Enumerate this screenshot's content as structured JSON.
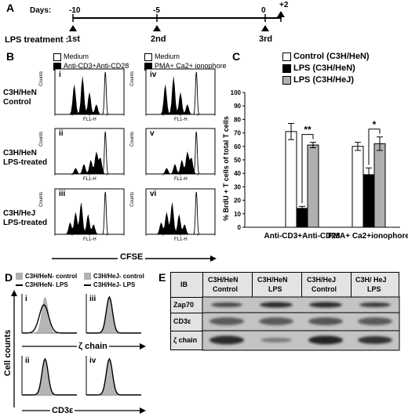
{
  "panels": {
    "A": "A",
    "B": "B",
    "C": "C",
    "D": "D",
    "E": "E"
  },
  "panelA": {
    "days_label": "Days:",
    "ticks": [
      "-10",
      "-5",
      "0",
      "+2"
    ],
    "lps_label": "LPS treatment :",
    "treatments": [
      "1st",
      "2nd",
      "3rd"
    ]
  },
  "panelB": {
    "legend_left": [
      "Medium",
      "Anti-CD3+Anti-CD28"
    ],
    "legend_right": [
      "Medium",
      "PMA+ Ca2+ ionophore"
    ],
    "row_labels": [
      [
        "C3H/HeN",
        "Control"
      ],
      [
        "C3H/HeN",
        "LPS-treated"
      ],
      [
        "C3H/HeJ",
        "LPS-treated"
      ]
    ],
    "subpanels": [
      "i",
      "ii",
      "iii",
      "iv",
      "v",
      "vi"
    ],
    "x_tick_label": "FL1-H",
    "y_tick_label": "Counts",
    "xlabel": "CFSE"
  },
  "chart_data": {
    "type": "bar",
    "title": "",
    "ylabel": "% BrdU + T cells of total T cells",
    "categories": [
      "Anti-CD3+Anti-CD28",
      "PMA+ Ca2+ionophore"
    ],
    "series": [
      {
        "name": "Control (C3H/HeN)",
        "values": [
          71,
          60
        ],
        "error": [
          6,
          3
        ],
        "color": "#ffffff"
      },
      {
        "name": "LPS (C3H/HeN)",
        "values": [
          14,
          39
        ],
        "error": [
          1.5,
          5
        ],
        "color": "#000000"
      },
      {
        "name": "LPS (C3H/HeJ)",
        "values": [
          61,
          62
        ],
        "error": [
          2,
          5
        ],
        "color": "#b0b0b0"
      }
    ],
    "ylim": [
      0,
      100
    ],
    "yticks": [
      0,
      10,
      20,
      30,
      40,
      50,
      60,
      70,
      80,
      90,
      100
    ],
    "significance": [
      "**",
      "*"
    ]
  },
  "panelD": {
    "legend": [
      "C3H/HeN- control",
      "C3H/HeN- LPS",
      "C3H/HeJ- control",
      "C3H/HeJ- LPS"
    ],
    "subpanels": [
      "i",
      "iii",
      "ii",
      "iv"
    ],
    "ylabel": "Cell counts",
    "zeta_label": "ζ chain",
    "cd3_label": "CD3ε"
  },
  "panelE": {
    "header": "IB",
    "columns": [
      [
        "C3H/HeN",
        "Control"
      ],
      [
        "C3H/HeN",
        "LPS"
      ],
      [
        "C3H/HeJ",
        "Control"
      ],
      [
        "C3H/ HeJ",
        "LPS"
      ]
    ],
    "rows": [
      "Zap70",
      "CD3ε",
      "ζ chain"
    ]
  }
}
